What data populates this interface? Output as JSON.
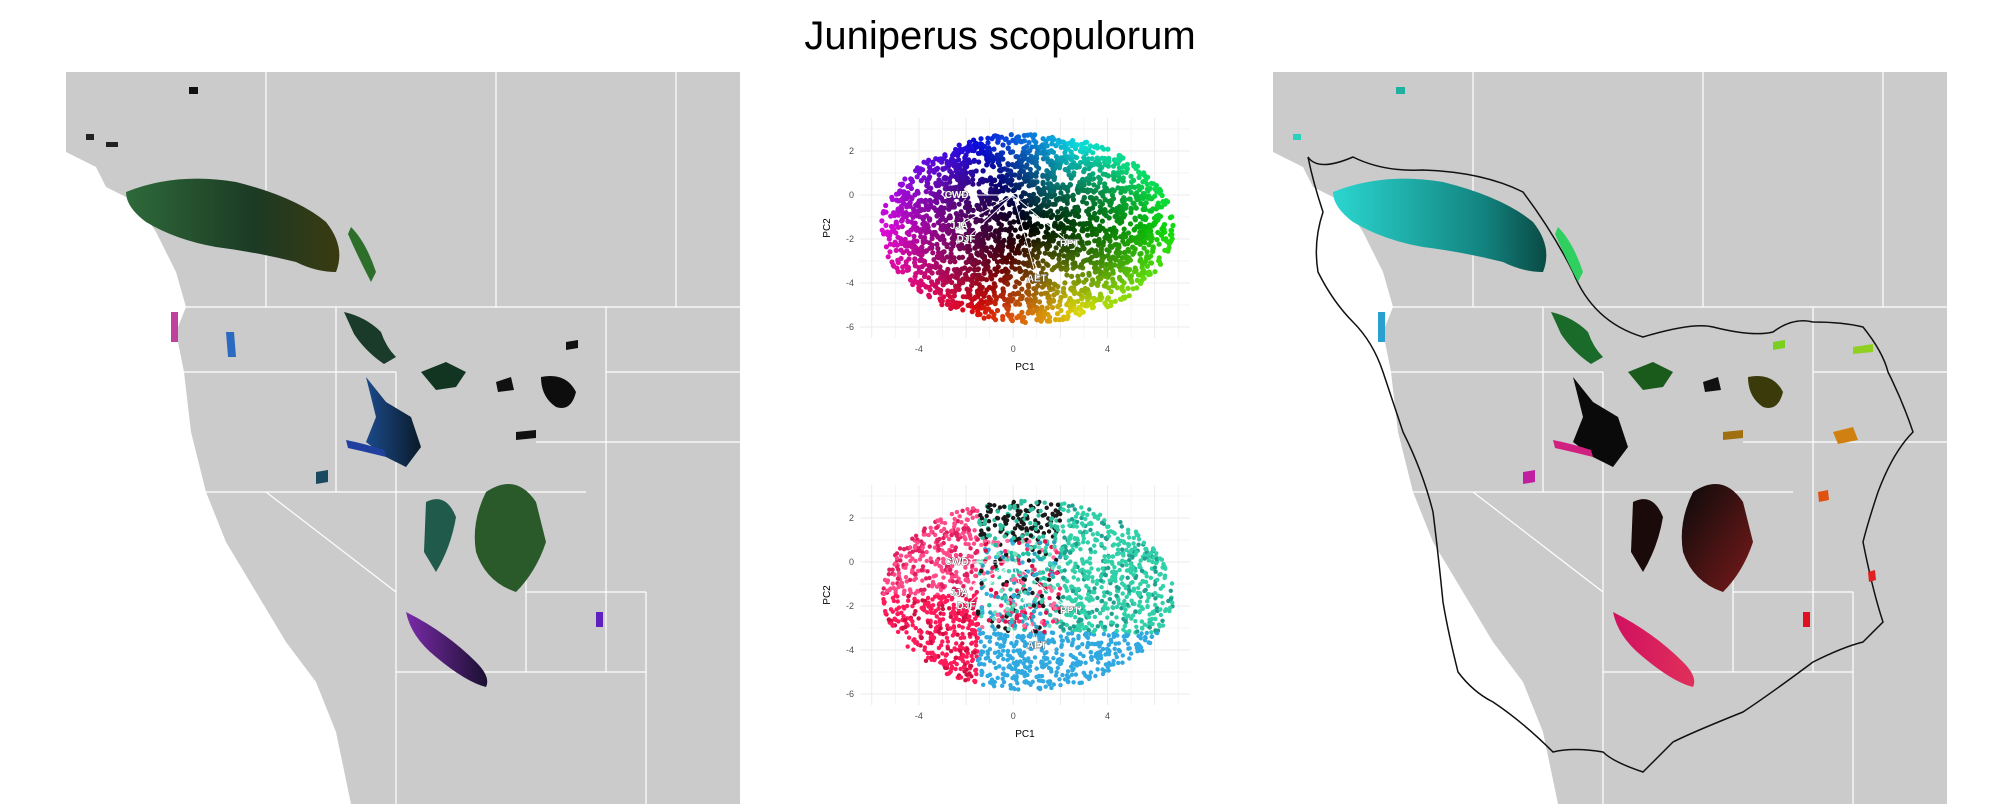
{
  "title": "Juniperus scopulorum",
  "chart_data": [
    {
      "type": "scatter",
      "id": "pca-top",
      "xlabel": "PC1",
      "ylabel": "PC2",
      "xlim": [
        -6.5,
        7.5
      ],
      "ylim": [
        -6.5,
        3.5
      ],
      "xticks": [
        -4,
        0,
        4
      ],
      "yticks": [
        -6,
        -4,
        -2,
        0,
        2
      ],
      "grid": true,
      "coloring": "continuous",
      "vectors": [
        {
          "label": "CWD",
          "x": -2.4,
          "y": 0.0
        },
        {
          "label": "JJA",
          "x": -2.3,
          "y": -1.4
        },
        {
          "label": "DJF",
          "x": -2.0,
          "y": -2.0
        },
        {
          "label": "PPT",
          "x": 2.4,
          "y": -2.2
        },
        {
          "label": "AET",
          "x": 1.0,
          "y": -3.8
        }
      ]
    },
    {
      "type": "scatter",
      "id": "pca-bottom",
      "xlabel": "PC1",
      "ylabel": "PC2",
      "xlim": [
        -6.5,
        7.5
      ],
      "ylim": [
        -6.5,
        3.5
      ],
      "xticks": [
        -4,
        0,
        4
      ],
      "yticks": [
        -6,
        -4,
        -2,
        0,
        2
      ],
      "grid": true,
      "coloring": "clustered",
      "vectors": [
        {
          "label": "CWD",
          "x": -2.4,
          "y": 0.0
        },
        {
          "label": "JJA",
          "x": -2.3,
          "y": -1.4
        },
        {
          "label": "DJF",
          "x": -2.0,
          "y": -2.0
        },
        {
          "label": "PPT",
          "x": 2.4,
          "y": -2.2
        },
        {
          "label": "AET",
          "x": 1.0,
          "y": -3.8
        }
      ]
    }
  ]
}
